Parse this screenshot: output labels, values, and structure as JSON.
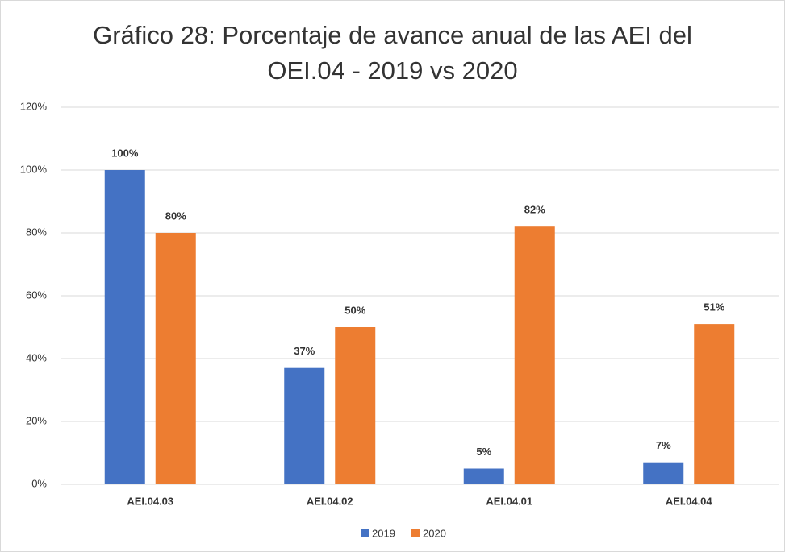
{
  "chart_data": {
    "type": "bar",
    "title": "Gráfico 28: Porcentaje de avance anual de las AEI del OEI.04 - 2019 vs 2020",
    "categories": [
      "AEI.04.03",
      "AEI.04.02",
      "AEI.04.01",
      "AEI.04.04"
    ],
    "series": [
      {
        "name": "2019",
        "color": "#4472c4",
        "values": [
          100,
          37,
          5,
          7
        ],
        "value_labels": [
          "100%",
          "37%",
          "5%",
          "7%"
        ]
      },
      {
        "name": "2020",
        "color": "#ed7d31",
        "values": [
          80,
          50,
          82,
          51
        ],
        "value_labels": [
          "80%",
          "50%",
          "82%",
          "51%"
        ]
      }
    ],
    "ylim": [
      0,
      120
    ],
    "yticks": [
      {
        "value": 0,
        "label": "0%"
      },
      {
        "value": 20,
        "label": "20%"
      },
      {
        "value": 40,
        "label": "40%"
      },
      {
        "value": 60,
        "label": "60%"
      },
      {
        "value": 80,
        "label": "80%"
      },
      {
        "value": 100,
        "label": "100%"
      },
      {
        "value": 120,
        "label": "120%"
      }
    ],
    "grid": true,
    "legend": "bottom"
  }
}
